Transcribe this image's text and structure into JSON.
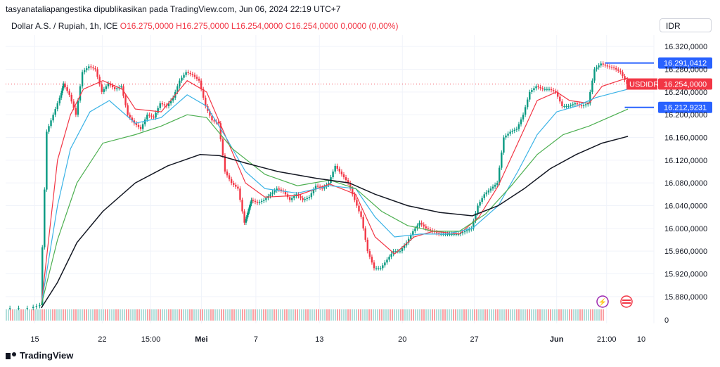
{
  "header": {
    "attribution": "tasyanataliapangestika dipublikasikan pada TradingView.com, Jun 06, 2024 22:19 UTC+7"
  },
  "symbol": {
    "name": "Dollar A.S. / Rupiah, 1h, ICE",
    "open": "O16.275,0000",
    "high": "H16.275,0000",
    "low": "L16.254,0000",
    "close": "C16.254,0000",
    "change": "0,0000 (0,00%)"
  },
  "currency_label": "IDR",
  "footer": {
    "brand": "TradingView"
  },
  "colors": {
    "up": "#089981",
    "down": "#f23645",
    "ma_fast": "#f23645",
    "ma_mid": "#22ab94",
    "ma_cyan": "#3bb3e6",
    "ma_green": "#4caf50",
    "ma_slow": "#131722",
    "level": "#2962ff"
  },
  "chart_data": {
    "type": "line",
    "title": "Dollar A.S. / Rupiah, 1h, ICE",
    "y_ticks": [
      "16.320,0000",
      "16.280,0000",
      "16.240,0000",
      "16.200,0000",
      "16.160,0000",
      "16.120,0000",
      "16.080,0000",
      "16.040,0000",
      "16.000,0000",
      "15.960,0000",
      "15.920,0000",
      "15.880,0000"
    ],
    "y_tick_values": [
      16320,
      16280,
      16240,
      16200,
      16160,
      16120,
      16080,
      16040,
      16000,
      15960,
      15920,
      15880
    ],
    "ylim": [
      15860,
      16340
    ],
    "volume_axis_label": "0",
    "x_ticks": [
      {
        "label": "15",
        "bold": false,
        "pos": 0.045
      },
      {
        "label": "22",
        "bold": false,
        "pos": 0.149
      },
      {
        "label": "15:00",
        "bold": false,
        "pos": 0.224
      },
      {
        "label": "Mei",
        "bold": true,
        "pos": 0.302
      },
      {
        "label": "7",
        "bold": false,
        "pos": 0.386
      },
      {
        "label": "13",
        "bold": false,
        "pos": 0.484
      },
      {
        "label": "20",
        "bold": false,
        "pos": 0.612
      },
      {
        "label": "27",
        "bold": false,
        "pos": 0.723
      },
      {
        "label": "Jun",
        "bold": true,
        "pos": 0.85
      },
      {
        "label": "21:00",
        "bold": false,
        "pos": 0.927
      },
      {
        "label": "10",
        "bold": false,
        "pos": 1.0
      }
    ],
    "price_path": [
      [
        0.0,
        15860
      ],
      [
        0.04,
        15860
      ],
      [
        0.055,
        15865
      ],
      [
        0.065,
        16170
      ],
      [
        0.075,
        16200
      ],
      [
        0.085,
        16230
      ],
      [
        0.09,
        16255
      ],
      [
        0.1,
        16235
      ],
      [
        0.11,
        16200
      ],
      [
        0.12,
        16275
      ],
      [
        0.13,
        16285
      ],
      [
        0.14,
        16280
      ],
      [
        0.15,
        16240
      ],
      [
        0.16,
        16255
      ],
      [
        0.17,
        16245
      ],
      [
        0.18,
        16250
      ],
      [
        0.19,
        16200
      ],
      [
        0.2,
        16185
      ],
      [
        0.21,
        16175
      ],
      [
        0.22,
        16200
      ],
      [
        0.23,
        16195
      ],
      [
        0.24,
        16220
      ],
      [
        0.25,
        16215
      ],
      [
        0.26,
        16230
      ],
      [
        0.27,
        16260
      ],
      [
        0.28,
        16275
      ],
      [
        0.29,
        16270
      ],
      [
        0.3,
        16260
      ],
      [
        0.31,
        16215
      ],
      [
        0.32,
        16190
      ],
      [
        0.33,
        16185
      ],
      [
        0.34,
        16100
      ],
      [
        0.35,
        16080
      ],
      [
        0.36,
        16070
      ],
      [
        0.37,
        16010
      ],
      [
        0.375,
        16030
      ],
      [
        0.38,
        16050
      ],
      [
        0.39,
        16045
      ],
      [
        0.4,
        16050
      ],
      [
        0.41,
        16060
      ],
      [
        0.42,
        16070
      ],
      [
        0.43,
        16065
      ],
      [
        0.44,
        16050
      ],
      [
        0.45,
        16060
      ],
      [
        0.46,
        16050
      ],
      [
        0.47,
        16055
      ],
      [
        0.48,
        16075
      ],
      [
        0.49,
        16070
      ],
      [
        0.5,
        16080
      ],
      [
        0.51,
        16110
      ],
      [
        0.52,
        16095
      ],
      [
        0.53,
        16080
      ],
      [
        0.54,
        16050
      ],
      [
        0.55,
        16020
      ],
      [
        0.56,
        15960
      ],
      [
        0.57,
        15930
      ],
      [
        0.58,
        15930
      ],
      [
        0.59,
        15945
      ],
      [
        0.6,
        15960
      ],
      [
        0.61,
        15960
      ],
      [
        0.62,
        15975
      ],
      [
        0.63,
        15995
      ],
      [
        0.64,
        16010
      ],
      [
        0.65,
        16000
      ],
      [
        0.66,
        15995
      ],
      [
        0.67,
        15990
      ],
      [
        0.68,
        15990
      ],
      [
        0.69,
        15990
      ],
      [
        0.7,
        15990
      ],
      [
        0.71,
        15995
      ],
      [
        0.72,
        16000
      ],
      [
        0.73,
        16040
      ],
      [
        0.74,
        16060
      ],
      [
        0.75,
        16070
      ],
      [
        0.76,
        16080
      ],
      [
        0.77,
        16160
      ],
      [
        0.78,
        16170
      ],
      [
        0.79,
        16175
      ],
      [
        0.8,
        16200
      ],
      [
        0.81,
        16240
      ],
      [
        0.82,
        16250
      ],
      [
        0.83,
        16245
      ],
      [
        0.84,
        16245
      ],
      [
        0.85,
        16240
      ],
      [
        0.86,
        16215
      ],
      [
        0.87,
        16215
      ],
      [
        0.88,
        16220
      ],
      [
        0.89,
        16215
      ],
      [
        0.9,
        16220
      ],
      [
        0.91,
        16280
      ],
      [
        0.92,
        16290
      ],
      [
        0.93,
        16285
      ],
      [
        0.94,
        16282
      ],
      [
        0.95,
        16275
      ],
      [
        0.96,
        16254
      ]
    ],
    "series": [
      {
        "color": "#f23645",
        "values": [
          [
            0.055,
            15865
          ],
          [
            0.08,
            16120
          ],
          [
            0.1,
            16200
          ],
          [
            0.12,
            16245
          ],
          [
            0.15,
            16260
          ],
          [
            0.18,
            16245
          ],
          [
            0.2,
            16210
          ],
          [
            0.24,
            16205
          ],
          [
            0.28,
            16260
          ],
          [
            0.31,
            16240
          ],
          [
            0.34,
            16160
          ],
          [
            0.37,
            16080
          ],
          [
            0.4,
            16055
          ],
          [
            0.45,
            16058
          ],
          [
            0.5,
            16078
          ],
          [
            0.54,
            16060
          ],
          [
            0.57,
            15985
          ],
          [
            0.6,
            15955
          ],
          [
            0.63,
            15985
          ],
          [
            0.66,
            15995
          ],
          [
            0.7,
            15990
          ],
          [
            0.73,
            16020
          ],
          [
            0.76,
            16075
          ],
          [
            0.79,
            16150
          ],
          [
            0.82,
            16225
          ],
          [
            0.85,
            16240
          ],
          [
            0.87,
            16225
          ],
          [
            0.9,
            16220
          ],
          [
            0.92,
            16250
          ],
          [
            0.96,
            16265
          ]
        ]
      },
      {
        "color": "#3bb3e6",
        "values": [
          [
            0.055,
            15865
          ],
          [
            0.08,
            16040
          ],
          [
            0.1,
            16140
          ],
          [
            0.13,
            16205
          ],
          [
            0.16,
            16225
          ],
          [
            0.2,
            16185
          ],
          [
            0.24,
            16195
          ],
          [
            0.28,
            16235
          ],
          [
            0.31,
            16215
          ],
          [
            0.34,
            16160
          ],
          [
            0.37,
            16100
          ],
          [
            0.4,
            16070
          ],
          [
            0.45,
            16062
          ],
          [
            0.5,
            16075
          ],
          [
            0.54,
            16070
          ],
          [
            0.57,
            16020
          ],
          [
            0.6,
            15985
          ],
          [
            0.64,
            15990
          ],
          [
            0.68,
            15990
          ],
          [
            0.72,
            16000
          ],
          [
            0.76,
            16040
          ],
          [
            0.79,
            16100
          ],
          [
            0.82,
            16165
          ],
          [
            0.85,
            16205
          ],
          [
            0.88,
            16215
          ],
          [
            0.91,
            16230
          ],
          [
            0.96,
            16245
          ]
        ]
      },
      {
        "color": "#4caf50",
        "values": [
          [
            0.055,
            15865
          ],
          [
            0.08,
            15980
          ],
          [
            0.11,
            16080
          ],
          [
            0.15,
            16150
          ],
          [
            0.2,
            16165
          ],
          [
            0.24,
            16180
          ],
          [
            0.28,
            16200
          ],
          [
            0.31,
            16195
          ],
          [
            0.35,
            16140
          ],
          [
            0.4,
            16095
          ],
          [
            0.45,
            16075
          ],
          [
            0.5,
            16085
          ],
          [
            0.54,
            16070
          ],
          [
            0.58,
            16030
          ],
          [
            0.62,
            16005
          ],
          [
            0.66,
            15995
          ],
          [
            0.7,
            15995
          ],
          [
            0.74,
            16025
          ],
          [
            0.78,
            16075
          ],
          [
            0.82,
            16130
          ],
          [
            0.86,
            16165
          ],
          [
            0.9,
            16180
          ],
          [
            0.93,
            16195
          ],
          [
            0.96,
            16210
          ]
        ]
      },
      {
        "color": "#131722",
        "values": [
          [
            0.055,
            15860
          ],
          [
            0.08,
            15905
          ],
          [
            0.11,
            15975
          ],
          [
            0.15,
            16030
          ],
          [
            0.2,
            16080
          ],
          [
            0.25,
            16110
          ],
          [
            0.3,
            16130
          ],
          [
            0.33,
            16128
          ],
          [
            0.37,
            16115
          ],
          [
            0.42,
            16100
          ],
          [
            0.48,
            16088
          ],
          [
            0.53,
            16080
          ],
          [
            0.57,
            16060
          ],
          [
            0.62,
            16040
          ],
          [
            0.67,
            16028
          ],
          [
            0.72,
            16022
          ],
          [
            0.76,
            16040
          ],
          [
            0.8,
            16070
          ],
          [
            0.84,
            16105
          ],
          [
            0.88,
            16130
          ],
          [
            0.92,
            16150
          ],
          [
            0.96,
            16162
          ]
        ]
      }
    ],
    "price_labels": [
      {
        "text": "16.291,0412",
        "value": 16291.04,
        "color": "#2962ff",
        "x_from": 0.925
      },
      {
        "text": "16.254,0000",
        "value": 16254,
        "color": "#f23645",
        "symbol": "USDIDR"
      },
      {
        "text": "16.212,9231",
        "value": 16212.92,
        "color": "#2962ff",
        "x_from": 0.955
      }
    ]
  }
}
